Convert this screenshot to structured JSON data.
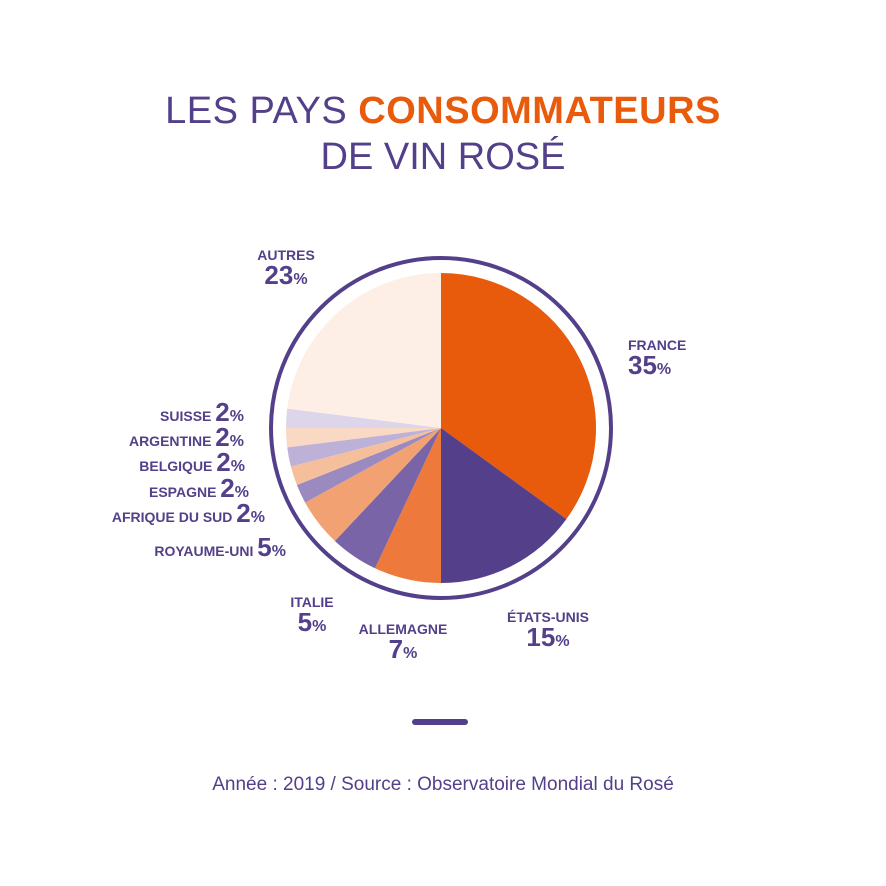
{
  "title": {
    "line1_plain": "LES PAYS ",
    "line1_accent": "CONSOMMATEURS",
    "line2": "DE VIN ROSÉ"
  },
  "colors": {
    "primary": "#54408a",
    "accent": "#e85a0c"
  },
  "chart_data": {
    "type": "pie",
    "title": "LES PAYS CONSOMMATEURS DE VIN ROSÉ",
    "unit": "%",
    "slices": [
      {
        "label": "FRANCE",
        "value": 35,
        "color": "#e85a0c"
      },
      {
        "label": "ÉTATS-UNIS",
        "value": 15,
        "color": "#543f8a"
      },
      {
        "label": "ALLEMAGNE",
        "value": 7,
        "color": "#ed7a3c"
      },
      {
        "label": "ITALIE",
        "value": 5,
        "color": "#7a64a8"
      },
      {
        "label": "ROYAUME-UNI",
        "value": 5,
        "color": "#f2a272"
      },
      {
        "label": "AFRIQUE DU SUD",
        "value": 2,
        "color": "#9b8abf"
      },
      {
        "label": "ESPAGNE",
        "value": 2,
        "color": "#f6bf9b"
      },
      {
        "label": "BELGIQUE",
        "value": 2,
        "color": "#bdb1d8"
      },
      {
        "label": "ARGENTINE",
        "value": 2,
        "color": "#f9d8c4"
      },
      {
        "label": "SUISSE",
        "value": 2,
        "color": "#ddd6eb"
      },
      {
        "label": "AUTRES",
        "value": 23,
        "color": "#fdeee6"
      }
    ]
  },
  "footer": {
    "source": "Année : 2019 / Source : Observatoire Mondial du Rosé"
  }
}
